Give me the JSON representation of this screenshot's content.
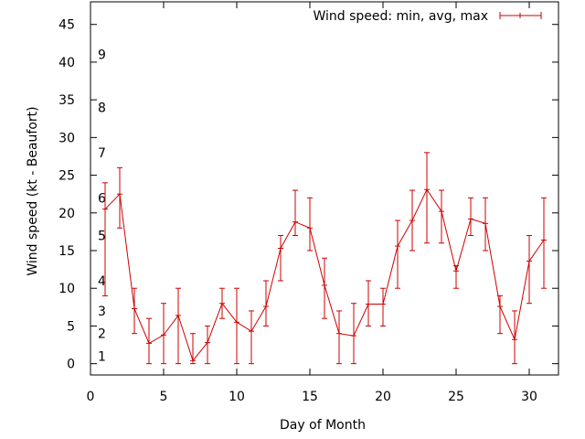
{
  "chart_data": {
    "type": "line",
    "xlabel": "Day of Month",
    "ylabel": "Wind speed (kt - Beaufort)",
    "xlim": [
      0,
      32
    ],
    "ylim": [
      -1.5,
      48
    ],
    "xticks": [
      0,
      5,
      10,
      15,
      20,
      25,
      30
    ],
    "yticks": [
      0,
      5,
      10,
      15,
      20,
      25,
      30,
      35,
      40,
      45
    ],
    "grid": false,
    "legend_position": "top-right",
    "beaufort_labels": [
      {
        "label": "1",
        "value": 1
      },
      {
        "label": "2",
        "value": 4
      },
      {
        "label": "3",
        "value": 7
      },
      {
        "label": "4",
        "value": 11
      },
      {
        "label": "5",
        "value": 17
      },
      {
        "label": "6",
        "value": 22
      },
      {
        "label": "7",
        "value": 28
      },
      {
        "label": "8",
        "value": 34
      },
      {
        "label": "9",
        "value": 41
      }
    ],
    "series": [
      {
        "name": "Wind speed: min, avg, max",
        "color": "#cc0000",
        "x": [
          1,
          2,
          3,
          4,
          5,
          6,
          7,
          8,
          9,
          10,
          11,
          12,
          13,
          14,
          15,
          16,
          17,
          18,
          19,
          20,
          21,
          22,
          23,
          24,
          25,
          26,
          27,
          28,
          29,
          30,
          31
        ],
        "y": [
          20.5,
          22.5,
          7.3,
          2.7,
          3.8,
          6.4,
          0.4,
          2.8,
          8.0,
          5.5,
          4.3,
          7.6,
          15.3,
          18.8,
          18.0,
          10.4,
          4.0,
          3.7,
          7.9,
          7.9,
          15.6,
          19.0,
          23.1,
          20.2,
          12.3,
          19.2,
          18.6,
          7.6,
          3.2,
          13.6,
          16.4
        ],
        "min": [
          9,
          18,
          4,
          0,
          0,
          0,
          0,
          0,
          6,
          0,
          0,
          5,
          11,
          17,
          15,
          6,
          0,
          0,
          5,
          5,
          10,
          15,
          16,
          16,
          10,
          17,
          15,
          4,
          0,
          8,
          10
        ],
        "max": [
          24,
          26,
          10,
          6,
          8,
          10,
          4,
          5,
          10,
          10,
          7,
          11,
          17,
          23,
          22,
          14,
          7,
          8,
          11,
          10,
          19,
          23,
          28,
          23,
          13,
          22,
          22,
          9,
          7,
          17,
          22
        ]
      }
    ]
  }
}
